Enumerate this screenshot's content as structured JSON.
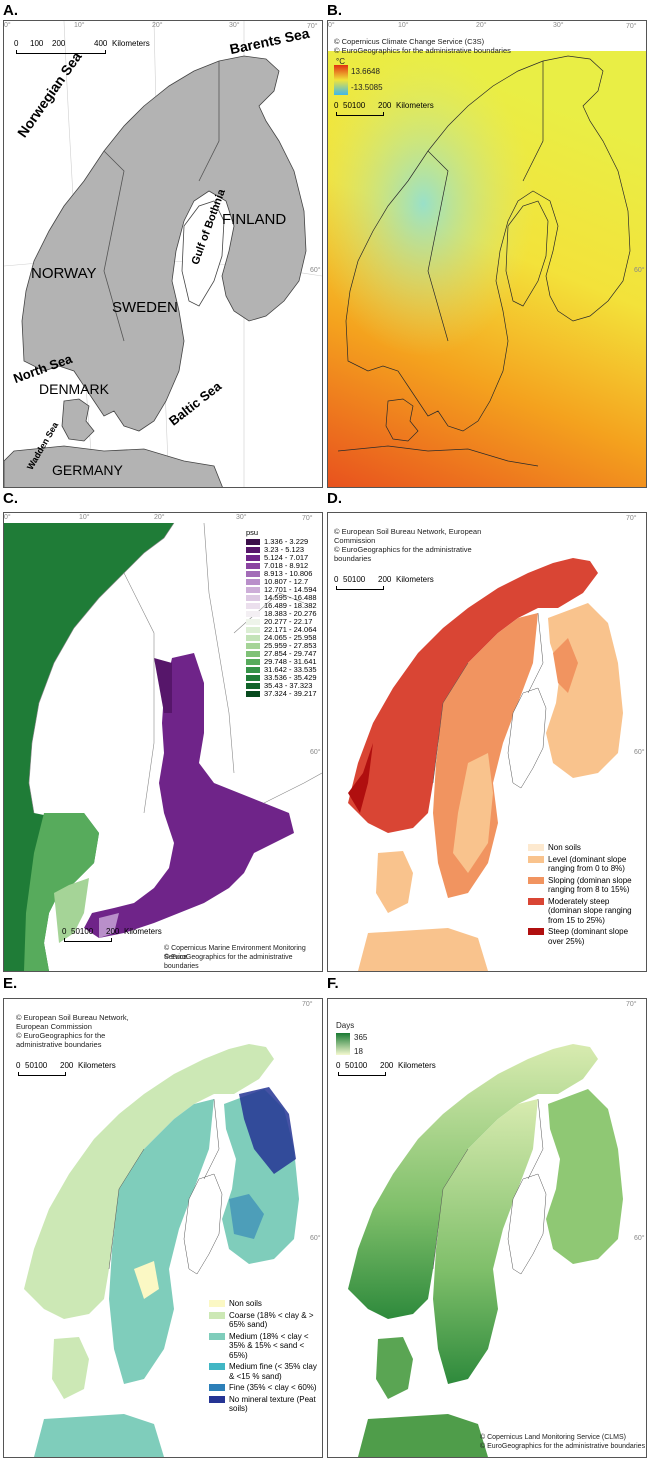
{
  "panels": {
    "a": {
      "letter": "A.",
      "scale": {
        "ticks": [
          "0",
          "100",
          "200",
          "400"
        ],
        "unit": "Kilometers"
      },
      "seas": [
        "Barents Sea",
        "Norwegian Sea",
        "Gulf of Bothnia",
        "North Sea",
        "Baltic Sea",
        "Wadden Sea"
      ],
      "countries": [
        "FINLAND",
        "NORWAY",
        "SWEDEN",
        "DENMARK",
        "GERMANY"
      ]
    },
    "b": {
      "letter": "B.",
      "credits": [
        "© Copernicus Climate Change Service (C3S)",
        "© EuroGeographics for the administrative boundaries"
      ],
      "legend_unit": "°C",
      "legend_max": "13.6648",
      "legend_min": "-13.5085",
      "scale": {
        "ticks": [
          "0",
          "50100",
          "200"
        ],
        "unit": "Kilometers"
      }
    },
    "c": {
      "letter": "C.",
      "legend_unit": "psu",
      "legend_items": [
        {
          "label": "1.336 - 3.229",
          "color": "#3b0f4a"
        },
        {
          "label": "3.23 - 5.123",
          "color": "#56166a"
        },
        {
          "label": "5.124 - 7.017",
          "color": "#6f2489"
        },
        {
          "label": "7.018 - 8.912",
          "color": "#8b44a2"
        },
        {
          "label": "8.913 - 10.806",
          "color": "#a36cb8"
        },
        {
          "label": "10.807 - 12.7",
          "color": "#b98fca"
        },
        {
          "label": "12.701 - 14.594",
          "color": "#cdaed8"
        },
        {
          "label": "14.595 - 16.488",
          "color": "#ddc9e3"
        },
        {
          "label": "16.489 - 18.382",
          "color": "#ebdfed"
        },
        {
          "label": "18.383 - 20.276",
          "color": "#f3eff3"
        },
        {
          "label": "20.277 - 22.17",
          "color": "#eef4ea"
        },
        {
          "label": "22.171 - 24.064",
          "color": "#dbeed3"
        },
        {
          "label": "24.065 - 25.958",
          "color": "#c3e3b8"
        },
        {
          "label": "25.959 - 27.853",
          "color": "#a5d497"
        },
        {
          "label": "27.854 - 29.747",
          "color": "#7fc177"
        },
        {
          "label": "29.748 - 31.641",
          "color": "#57ab5c"
        },
        {
          "label": "31.642 - 33.535",
          "color": "#359348"
        },
        {
          "label": "33.536 - 35.429",
          "color": "#1f7c37"
        },
        {
          "label": "35.43 - 37.323",
          "color": "#10632a"
        },
        {
          "label": "37.324 - 39.217",
          "color": "#074a1e"
        }
      ],
      "scale": {
        "ticks": [
          "0",
          "50100",
          "200"
        ],
        "unit": "Kilometers"
      },
      "credits": [
        "© Copernicus Marine Environment Monitoring Service",
        "© EuroGeographics for the administrative boundaries"
      ]
    },
    "d": {
      "letter": "D.",
      "credits": [
        "© European Soil Bureau Network, European",
        "Commission",
        "© EuroGeographics for the administrative",
        "boundaries"
      ],
      "scale": {
        "ticks": [
          "0",
          "50100",
          "200"
        ],
        "unit": "Kilometers"
      },
      "legend_items": [
        {
          "label": "Non soils",
          "color": "#fde9cf"
        },
        {
          "label": "Level (dominant slope ranging from 0 to 8%)",
          "color": "#f9c38d"
        },
        {
          "label": "Sloping (dominan slope ranging from 8 to 15%)",
          "color": "#f19460"
        },
        {
          "label": "Moderately steep (dominan slope ranging from 15 to 25%)",
          "color": "#d94534"
        },
        {
          "label": "Steep (dominant slope over 25%)",
          "color": "#b00f0f"
        }
      ]
    },
    "e": {
      "letter": "E.",
      "credits": [
        "© European Soil Bureau Network,",
        "European Commission",
        "© EuroGeographics for the",
        "administrative boundaries"
      ],
      "scale": {
        "ticks": [
          "0",
          "50100",
          "200"
        ],
        "unit": "Kilometers"
      },
      "legend_items": [
        {
          "label": "Non soils",
          "color": "#fbf8c4"
        },
        {
          "label": "Coarse (18% < clay & > 65% sand)",
          "color": "#cce8b5"
        },
        {
          "label": "Medium (18% < clay < 35% & 15% < sand < 65%)",
          "color": "#7fcdbb"
        },
        {
          "label": "Medium fine (< 35% clay & <15 % sand)",
          "color": "#41b6c4"
        },
        {
          "label": "Fine (35% < clay < 60%)",
          "color": "#2c7fb8"
        },
        {
          "label": "No mineral texture (Peat soils)",
          "color": "#253494"
        }
      ]
    },
    "f": {
      "letter": "F.",
      "legend_unit": "Days",
      "legend_max": "365",
      "legend_min": "18",
      "scale": {
        "ticks": [
          "0",
          "50100",
          "200"
        ],
        "unit": "Kilometers"
      },
      "credits": [
        "© Copernicus Land Monitoring Service (CLMS)",
        "© EuroGeographics for the administrative boundaries"
      ]
    }
  },
  "graticule_labels": {
    "top": [
      "0°",
      "10°",
      "20°",
      "30°",
      "40°"
    ],
    "corner": "70°",
    "side": "60°"
  }
}
